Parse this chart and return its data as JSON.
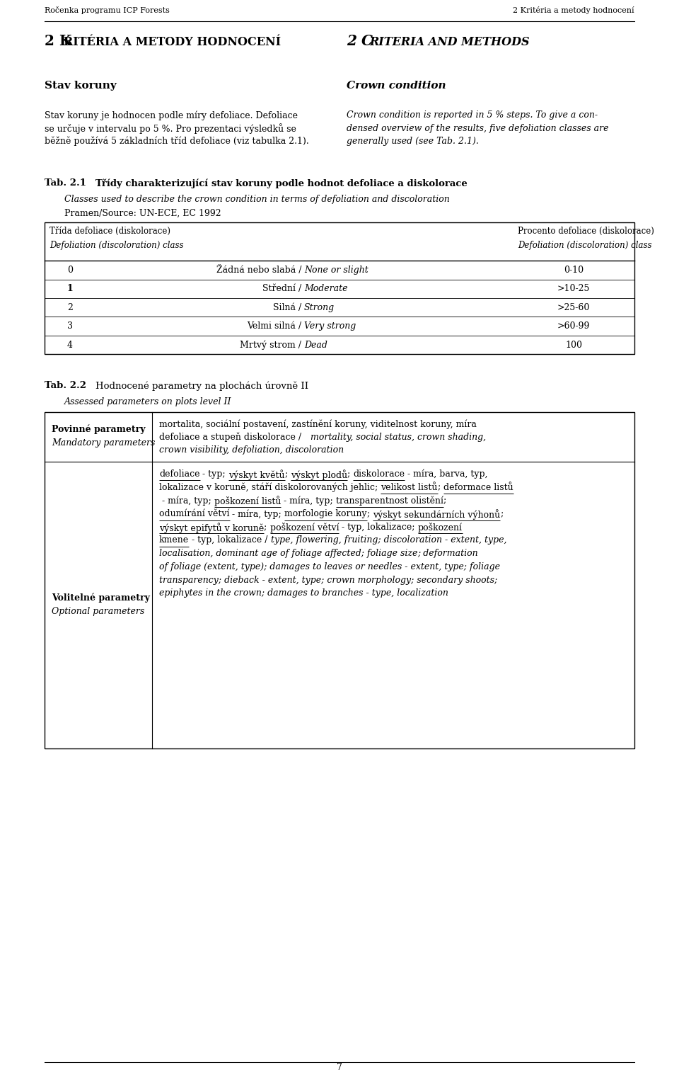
{
  "page_width": 9.6,
  "page_height": 15.28,
  "bg_color": "#ffffff",
  "header_left": "Ročenka programu ICP Forests",
  "header_right": "2 Kritéria a metody hodnocení",
  "section_left": "Stav koruny",
  "section_right": "Crown condition",
  "body_left_lines": [
    "Stav koruny je hodnocen podle míry defoliace. Defoliace",
    "se určuje v intervalu po 5 %. Pro prezentaci výsledků se",
    "běžně používá 5 základních tříd defoliace (viz tabulka 2.1)."
  ],
  "body_right_lines": [
    "Crown condition is reported in 5 % steps. To give a con-",
    "densed overview of the results, five defoliation classes are",
    "generally used (see Tab. 2.1)."
  ],
  "tab21_col1_header1": "Třída defoliace (diskolorace)",
  "tab21_col1_header2": "Defoliation (discoloration) class",
  "tab21_col3_header1": "Procento defoliace (diskolorace)",
  "tab21_col3_header2": "Defoliation (discoloration) class",
  "tab21_rows": [
    [
      "0",
      "Žádná nebo slabá / None or slight",
      "0-10"
    ],
    [
      "1",
      "Střední / Moderate",
      ">10-25"
    ],
    [
      "2",
      "Silná / Strong",
      ">25-60"
    ],
    [
      "3",
      "Velmi silná / Very strong",
      ">60-99"
    ],
    [
      "4",
      "Mrtvý strom / Dead",
      "100"
    ]
  ],
  "tab22_subtitle_italic": "Assessed parameters on plots level II",
  "tab22_row1_col1_line1": "Povinné parametry",
  "tab22_row1_col1_line2": "Mandatory parameters",
  "tab22_row2_col1_line1": "Volitelné parametry",
  "tab22_row2_col1_line2": "Optional parameters",
  "footer_text": "7",
  "ml": 0.63,
  "mr": 0.63
}
